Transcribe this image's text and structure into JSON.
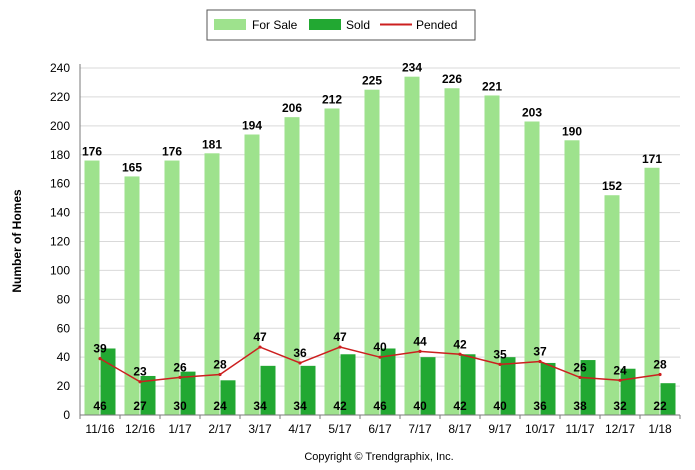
{
  "colors": {
    "for_sale": "#9ee28d",
    "sold": "#22a832",
    "pended": "#cc1f1f",
    "grid": "#d9d9d9",
    "axis": "#7a7a7a"
  },
  "copyright": "Copyright © Trendgraphix, Inc.",
  "chart_data": {
    "type": "bar",
    "title": "",
    "xlabel": "",
    "ylabel": "Number of Homes",
    "ylim": [
      0,
      240
    ],
    "yticks": [
      0,
      20,
      40,
      60,
      80,
      100,
      120,
      140,
      160,
      180,
      200,
      220,
      240
    ],
    "grid": true,
    "legend_position": "top",
    "categories": [
      "11/16",
      "12/16",
      "1/17",
      "2/17",
      "3/17",
      "4/17",
      "5/17",
      "6/17",
      "7/17",
      "8/17",
      "9/17",
      "10/17",
      "11/17",
      "12/17",
      "1/18"
    ],
    "series": [
      {
        "name": "For Sale",
        "kind": "bar",
        "values": [
          176,
          165,
          176,
          181,
          194,
          206,
          212,
          225,
          234,
          226,
          221,
          203,
          190,
          152,
          171
        ]
      },
      {
        "name": "Sold",
        "kind": "bar",
        "values": [
          46,
          27,
          30,
          24,
          34,
          34,
          42,
          46,
          40,
          42,
          40,
          36,
          38,
          32,
          22
        ]
      },
      {
        "name": "Pended",
        "kind": "line",
        "values": [
          39,
          23,
          26,
          28,
          47,
          36,
          47,
          40,
          44,
          42,
          35,
          37,
          26,
          24,
          28
        ]
      }
    ]
  }
}
